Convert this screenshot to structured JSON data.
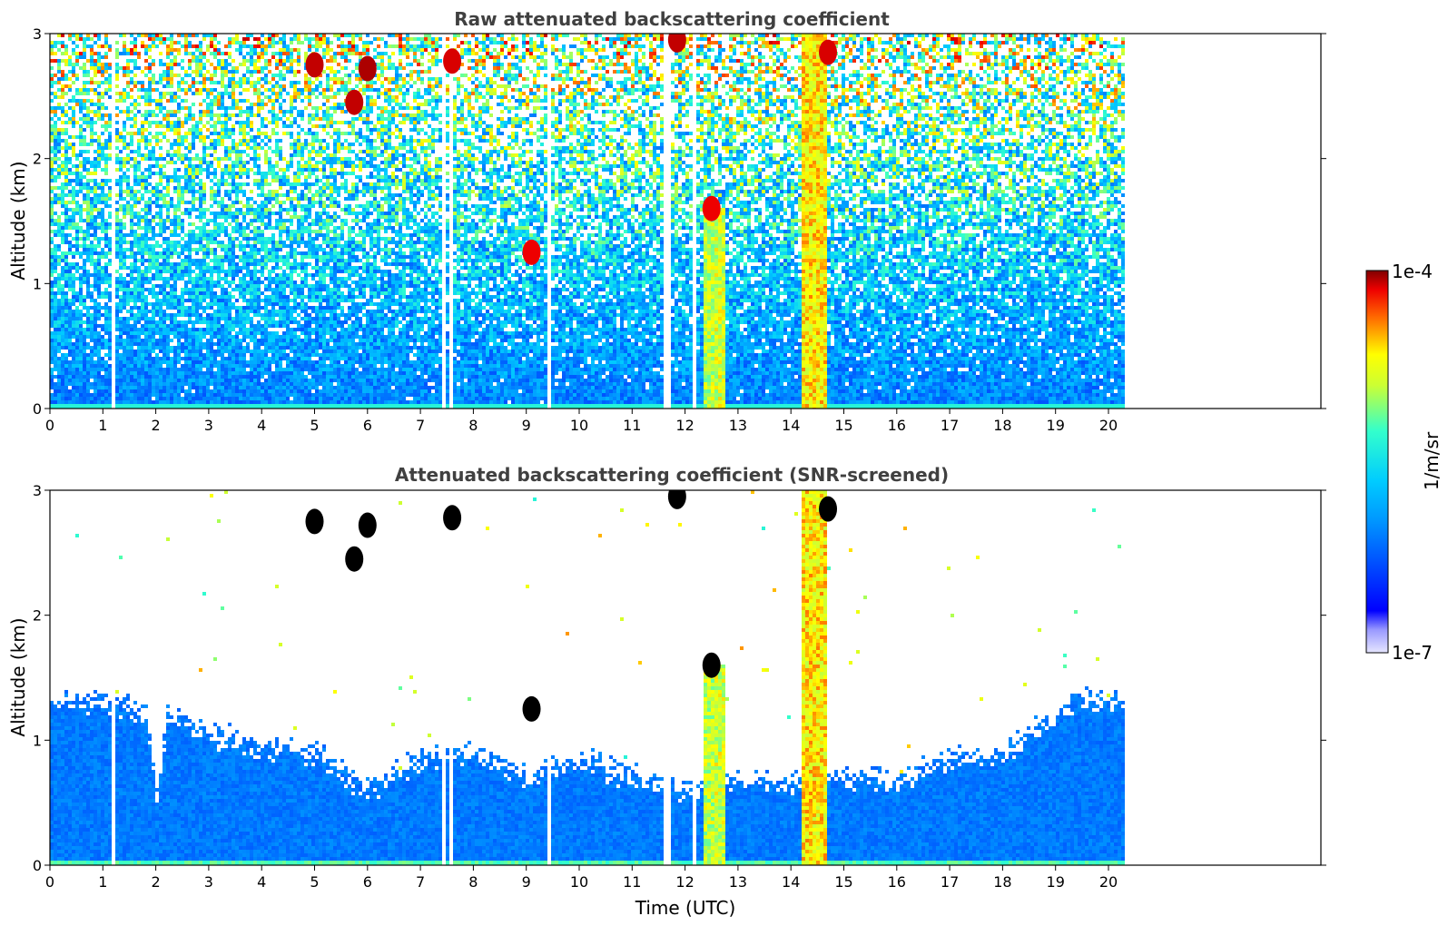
{
  "chart_data": [
    {
      "type": "heatmap",
      "title": "Raw attenuated backscattering coefficient",
      "xlabel": "",
      "ylabel": "Altitude (km)",
      "xlim": [
        0,
        24
      ],
      "ylim": [
        0,
        3
      ],
      "xticks": [
        "0",
        "1",
        "2",
        "3",
        "4",
        "5",
        "6",
        "7",
        "8",
        "9",
        "10",
        "11",
        "12",
        "13",
        "14",
        "15",
        "16",
        "17",
        "18",
        "19",
        "20"
      ],
      "yticks": [
        "0",
        "1",
        "2",
        "3"
      ],
      "data_end_time": 20.3,
      "screened": false,
      "gaps": [
        [
          1.15,
          1.2
        ],
        [
          7.38,
          7.42
        ],
        [
          7.5,
          7.55
        ],
        [
          9.35,
          9.4
        ],
        [
          11.55,
          11.72
        ],
        [
          12.1,
          12.15
        ]
      ],
      "cloud_columns": [
        {
          "t0": 12.3,
          "t1": 12.5,
          "top": 1.6,
          "level": 0.7
        },
        {
          "t0": 12.55,
          "t1": 12.75,
          "top": 1.6,
          "level": 0.72
        },
        {
          "t0": 14.2,
          "t1": 14.65,
          "top": 3.0,
          "level": 0.78
        }
      ],
      "cloud_blobs": [
        {
          "t": 5.0,
          "alt": 2.75,
          "level": 0.97
        },
        {
          "t": 6.0,
          "alt": 2.72,
          "level": 0.98
        },
        {
          "t": 5.75,
          "alt": 2.45,
          "level": 0.97
        },
        {
          "t": 7.6,
          "alt": 2.78,
          "level": 0.96
        },
        {
          "t": 9.1,
          "alt": 1.25,
          "level": 0.95
        },
        {
          "t": 12.5,
          "alt": 1.6,
          "level": 0.95
        },
        {
          "t": 14.7,
          "alt": 2.85,
          "level": 0.96
        },
        {
          "t": 11.85,
          "alt": 2.95,
          "level": 0.97
        }
      ]
    },
    {
      "type": "heatmap",
      "title": "Attenuated backscattering coefficient (SNR-screened)",
      "xlabel": "Time (UTC)",
      "ylabel": "Altitude (km)",
      "xlim": [
        0,
        24
      ],
      "ylim": [
        0,
        3
      ],
      "xticks": [
        "0",
        "1",
        "2",
        "3",
        "4",
        "5",
        "6",
        "7",
        "8",
        "9",
        "10",
        "11",
        "12",
        "13",
        "14",
        "15",
        "16",
        "17",
        "18",
        "19",
        "20"
      ],
      "yticks": [
        "0",
        "1",
        "2",
        "3"
      ],
      "data_end_time": 20.3,
      "screened": true,
      "gaps": [
        [
          1.15,
          1.2
        ],
        [
          7.38,
          7.42
        ],
        [
          7.5,
          7.55
        ],
        [
          9.35,
          9.4
        ],
        [
          11.55,
          11.72
        ],
        [
          12.1,
          12.15
        ]
      ],
      "boundary_layer_top": [
        {
          "t": 0.0,
          "alt": 1.3
        },
        {
          "t": 1.0,
          "alt": 1.3
        },
        {
          "t": 1.8,
          "alt": 1.2
        },
        {
          "t": 2.0,
          "alt": 0.5
        },
        {
          "t": 2.2,
          "alt": 1.2
        },
        {
          "t": 3.0,
          "alt": 1.05
        },
        {
          "t": 4.0,
          "alt": 0.95
        },
        {
          "t": 5.0,
          "alt": 0.9
        },
        {
          "t": 6.0,
          "alt": 0.6
        },
        {
          "t": 7.0,
          "alt": 0.85
        },
        {
          "t": 8.0,
          "alt": 0.9
        },
        {
          "t": 9.0,
          "alt": 0.7
        },
        {
          "t": 10.0,
          "alt": 0.85
        },
        {
          "t": 11.0,
          "alt": 0.7
        },
        {
          "t": 12.0,
          "alt": 0.6
        },
        {
          "t": 13.0,
          "alt": 0.7
        },
        {
          "t": 14.0,
          "alt": 0.65
        },
        {
          "t": 15.0,
          "alt": 0.7
        },
        {
          "t": 16.0,
          "alt": 0.65
        },
        {
          "t": 17.0,
          "alt": 0.85
        },
        {
          "t": 18.0,
          "alt": 0.9
        },
        {
          "t": 19.0,
          "alt": 1.2
        },
        {
          "t": 19.5,
          "alt": 1.35
        },
        {
          "t": 20.3,
          "alt": 1.3
        }
      ],
      "cloud_columns": [
        {
          "t0": 12.3,
          "t1": 12.5,
          "top": 1.6,
          "level": 0.7
        },
        {
          "t0": 12.55,
          "t1": 12.75,
          "top": 1.6,
          "level": 0.72
        },
        {
          "t0": 14.2,
          "t1": 14.65,
          "top": 3.0,
          "level": 0.78
        }
      ],
      "cloud_blobs": [
        {
          "t": 5.0,
          "alt": 2.75,
          "level": 1.0
        },
        {
          "t": 6.0,
          "alt": 2.72,
          "level": 1.0
        },
        {
          "t": 5.75,
          "alt": 2.45,
          "level": 1.0
        },
        {
          "t": 7.6,
          "alt": 2.78,
          "level": 1.0
        },
        {
          "t": 9.1,
          "alt": 1.25,
          "level": 1.0
        },
        {
          "t": 12.5,
          "alt": 1.6,
          "level": 1.0
        },
        {
          "t": 14.7,
          "alt": 2.85,
          "level": 1.0
        },
        {
          "t": 11.85,
          "alt": 2.95,
          "level": 1.0
        }
      ]
    }
  ],
  "colorbar": {
    "max_label": "1e-4",
    "min_label": "1e-7",
    "units": "1/m/sr",
    "colormap": "jet",
    "scale": "log"
  }
}
